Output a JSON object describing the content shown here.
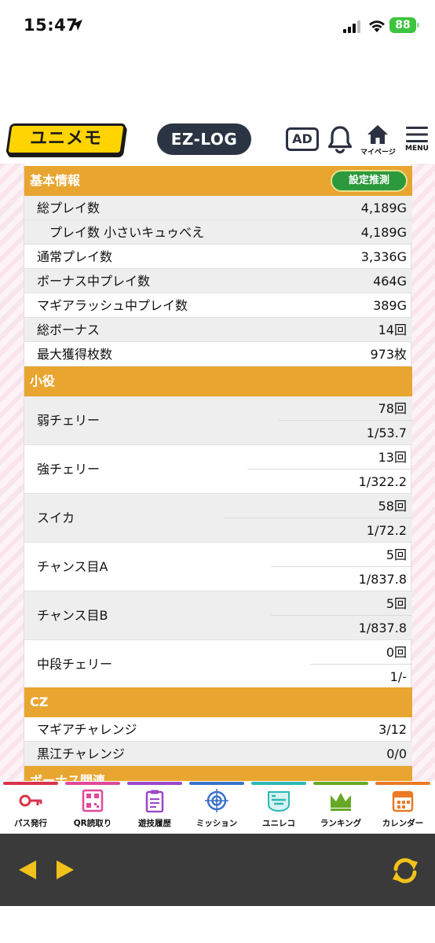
{
  "status_bar": {
    "time": "15:47",
    "battery": "88"
  },
  "header": {
    "logo": "ユニメモ",
    "ezlog": "EZ-LOG",
    "ad": "AD",
    "mypage": "マイページ",
    "menu": "MENU"
  },
  "basic": {
    "title": "基本情報",
    "estimate_button": "設定推測",
    "rows": [
      {
        "label": "総プレイ数",
        "value": "4,189G"
      },
      {
        "label": "プレイ数 小さいキュゥべえ",
        "value": "4,189G"
      },
      {
        "label": "通常プレイ数",
        "value": "3,336G"
      },
      {
        "label": "ボーナス中プレイ数",
        "value": "464G"
      },
      {
        "label": "マギアラッシュ中プレイ数",
        "value": "389G"
      },
      {
        "label": "総ボーナス",
        "value": "14回"
      },
      {
        "label": "最大獲得枚数",
        "value": "973枚"
      }
    ]
  },
  "koyaku": {
    "title": "小役",
    "rows": [
      {
        "label": "弱チェリー",
        "count": "78回",
        "rate": "1/53.7"
      },
      {
        "label": "強チェリー",
        "count": "13回",
        "rate": "1/322.2"
      },
      {
        "label": "スイカ",
        "count": "58回",
        "rate": "1/72.2"
      },
      {
        "label": "チャンス目A",
        "count": "5回",
        "rate": "1/837.8"
      },
      {
        "label": "チャンス目B",
        "count": "5回",
        "rate": "1/837.8"
      },
      {
        "label": "中段チェリー",
        "count": "0回",
        "rate": "1/-"
      }
    ]
  },
  "cz": {
    "title": "CZ",
    "rows": [
      {
        "label": "マギアチャレンジ",
        "value": "3/12"
      },
      {
        "label": "黒江チャレンジ",
        "value": "0/0"
      }
    ]
  },
  "bonus_section": {
    "title": "ボーナス関連"
  },
  "bottom_nav": [
    {
      "label": "パス発行",
      "icon": "key-icon",
      "color": "#d9334a"
    },
    {
      "label": "QR読取り",
      "icon": "qr-code-icon",
      "color": "#e0489a"
    },
    {
      "label": "遊技履歴",
      "icon": "clipboard-icon",
      "color": "#9b46c8"
    },
    {
      "label": "ミッション",
      "icon": "target-icon",
      "color": "#3a72c8"
    },
    {
      "label": "ユニレコ",
      "icon": "unireco-badge-icon",
      "color": "#2bb8b4"
    },
    {
      "label": "ランキング",
      "icon": "crown-icon",
      "color": "#66a826"
    },
    {
      "label": "カレンダー",
      "icon": "calendar-icon",
      "color": "#ea7a24"
    }
  ]
}
